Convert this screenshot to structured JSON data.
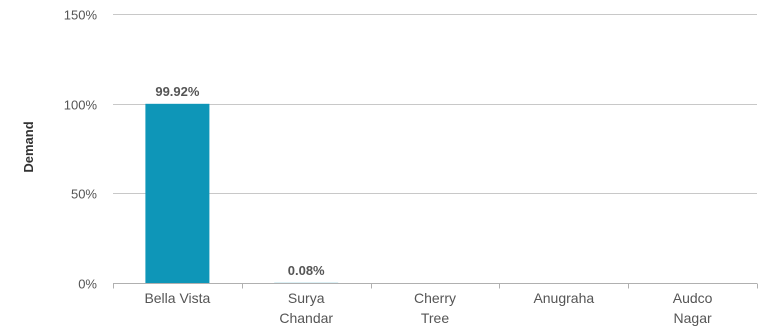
{
  "chart_data": {
    "type": "bar",
    "categories": [
      "Bella Vista",
      "Surya Chandar",
      "Cherry Tree",
      "Anugraha",
      "Audco Nagar"
    ],
    "category_lines": [
      [
        "Bella Vista"
      ],
      [
        "Surya",
        "Chandar"
      ],
      [
        "Cherry",
        "Tree"
      ],
      [
        "Anugraha"
      ],
      [
        "Audco",
        "Nagar"
      ]
    ],
    "values": [
      99.92,
      0.08,
      0,
      0,
      0
    ],
    "data_labels": [
      "99.92%",
      "0.08%",
      "",
      "",
      ""
    ],
    "ylabel": "Demand",
    "ylim": [
      0,
      150
    ],
    "yticks": [
      0,
      50,
      100,
      150
    ],
    "ytick_labels": [
      "0%",
      "50%",
      "100%",
      "150%"
    ],
    "grid": true,
    "bar_color": "#0e96b8"
  }
}
